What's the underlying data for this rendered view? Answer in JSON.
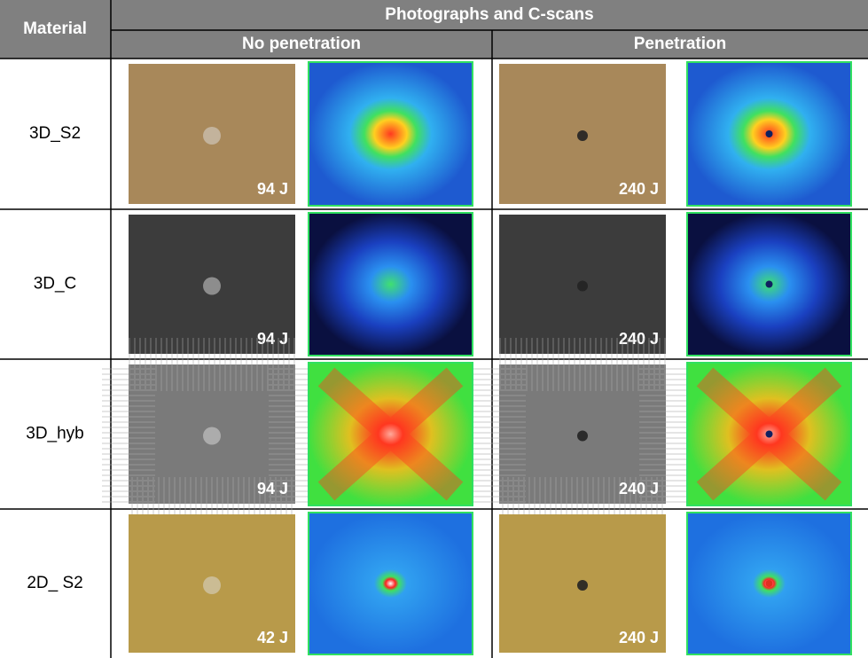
{
  "header": {
    "material": "Material",
    "title": "Photographs and C-scans",
    "no_penetration": "No penetration",
    "penetration": "Penetration"
  },
  "rows": [
    {
      "material": "3D_S2",
      "no_penetration_energy": "94 J",
      "penetration_energy": "240 J"
    },
    {
      "material": "3D_C",
      "no_penetration_energy": "94 J",
      "penetration_energy": "240 J"
    },
    {
      "material": "3D_hyb",
      "no_penetration_energy": "94 J",
      "penetration_energy": "240 J"
    },
    {
      "material": "2D_ S2",
      "no_penetration_energy": "42 J",
      "penetration_energy": "240 J"
    }
  ]
}
